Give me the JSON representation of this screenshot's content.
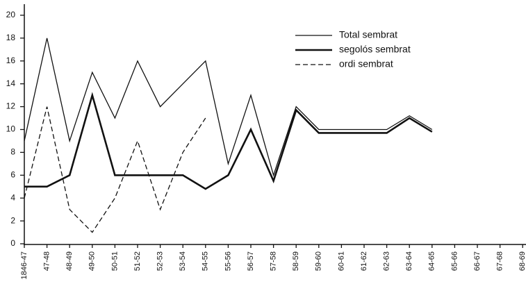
{
  "chart_data": {
    "type": "line",
    "categories": [
      "1846-47",
      "47-48",
      "48-49",
      "49-50",
      "50-51",
      "51-52",
      "52-53",
      "53-54",
      "54-55",
      "55-56",
      "56-57",
      "57-58",
      "58-59",
      "59-60",
      "60-61",
      "61-62",
      "62-63",
      "63-64",
      "64-65",
      "65-66",
      "66-67",
      "67-68",
      "68-69"
    ],
    "series": [
      {
        "name": "Total sembrat",
        "color": "#111111",
        "line_width": 1.3,
        "dashed": false,
        "values": [
          9,
          18,
          9,
          15,
          11,
          16,
          12,
          14,
          16,
          7,
          13,
          6,
          12,
          10,
          10,
          10,
          10,
          11.2,
          10,
          null,
          null,
          null,
          null
        ]
      },
      {
        "name": "segolós sembrat",
        "color": "#111111",
        "line_width": 2.6,
        "dashed": false,
        "values": [
          5,
          5,
          6,
          13,
          6,
          6,
          6,
          6,
          4.8,
          6,
          10,
          5.5,
          11.7,
          9.7,
          9.7,
          9.7,
          9.7,
          11,
          9.8,
          null,
          null,
          null,
          null
        ]
      },
      {
        "name": "ordi sembrat",
        "color": "#111111",
        "line_width": 1.3,
        "dashed": true,
        "values": [
          4,
          12,
          3,
          1,
          4,
          9,
          3,
          8,
          11,
          null,
          null,
          null,
          null,
          null,
          null,
          null,
          null,
          null,
          null,
          null,
          null,
          null,
          null
        ]
      }
    ],
    "ylim": [
      0,
      21
    ],
    "yticks": [
      0,
      2,
      4,
      6,
      8,
      10,
      12,
      14,
      16,
      18,
      20
    ],
    "grid": false
  }
}
